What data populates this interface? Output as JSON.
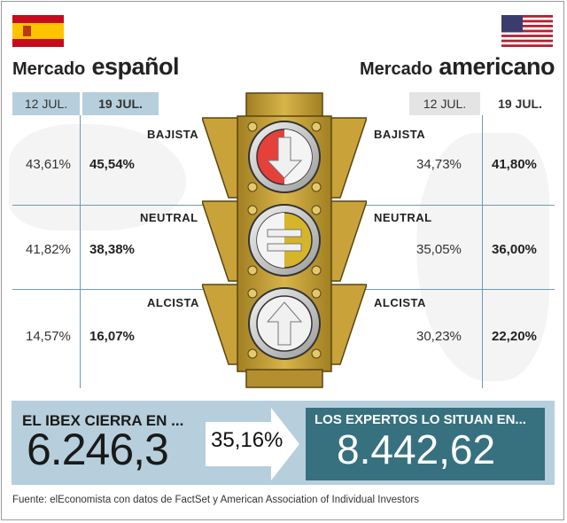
{
  "spain": {
    "title_prefix": "Mercado",
    "title_main": "español",
    "col_prev": "12 JUL.",
    "col_curr": "19 JUL.",
    "rows": [
      {
        "label": "BAJISTA",
        "prev": "43,61%",
        "curr": "45,54%"
      },
      {
        "label": "NEUTRAL",
        "prev": "41,82%",
        "curr": "38,38%"
      },
      {
        "label": "ALCISTA",
        "prev": "14,57%",
        "curr": "16,07%"
      }
    ]
  },
  "usa": {
    "title_prefix": "Mercado",
    "title_main": "americano",
    "col_prev": "12 JUL.",
    "col_curr": "19 JUL.",
    "rows": [
      {
        "label": "BAJISTA",
        "prev": "34,73%",
        "curr": "41,80%"
      },
      {
        "label": "NEUTRAL",
        "prev": "35,05%",
        "curr": "36,00%"
      },
      {
        "label": "ALCISTA",
        "prev": "30,23%",
        "curr": "22,20%"
      }
    ]
  },
  "summary": {
    "ibex_label": "EL IBEX CIERRA EN ...",
    "ibex_value": "6.246,3",
    "change": "35,16%",
    "experts_label": "LOS EXPERTOS LO SITUAN EN...",
    "experts_value": "8.442,62"
  },
  "source": "Fuente: elEconomista con datos de FactSet y American Association of Individual Investors",
  "colors": {
    "light_blue": "#b7cfdc",
    "dark_teal": "#37707f",
    "traffic_gold": "#c9a33a",
    "red_light": "#e5403a",
    "yellow_light": "#d6b52a"
  }
}
